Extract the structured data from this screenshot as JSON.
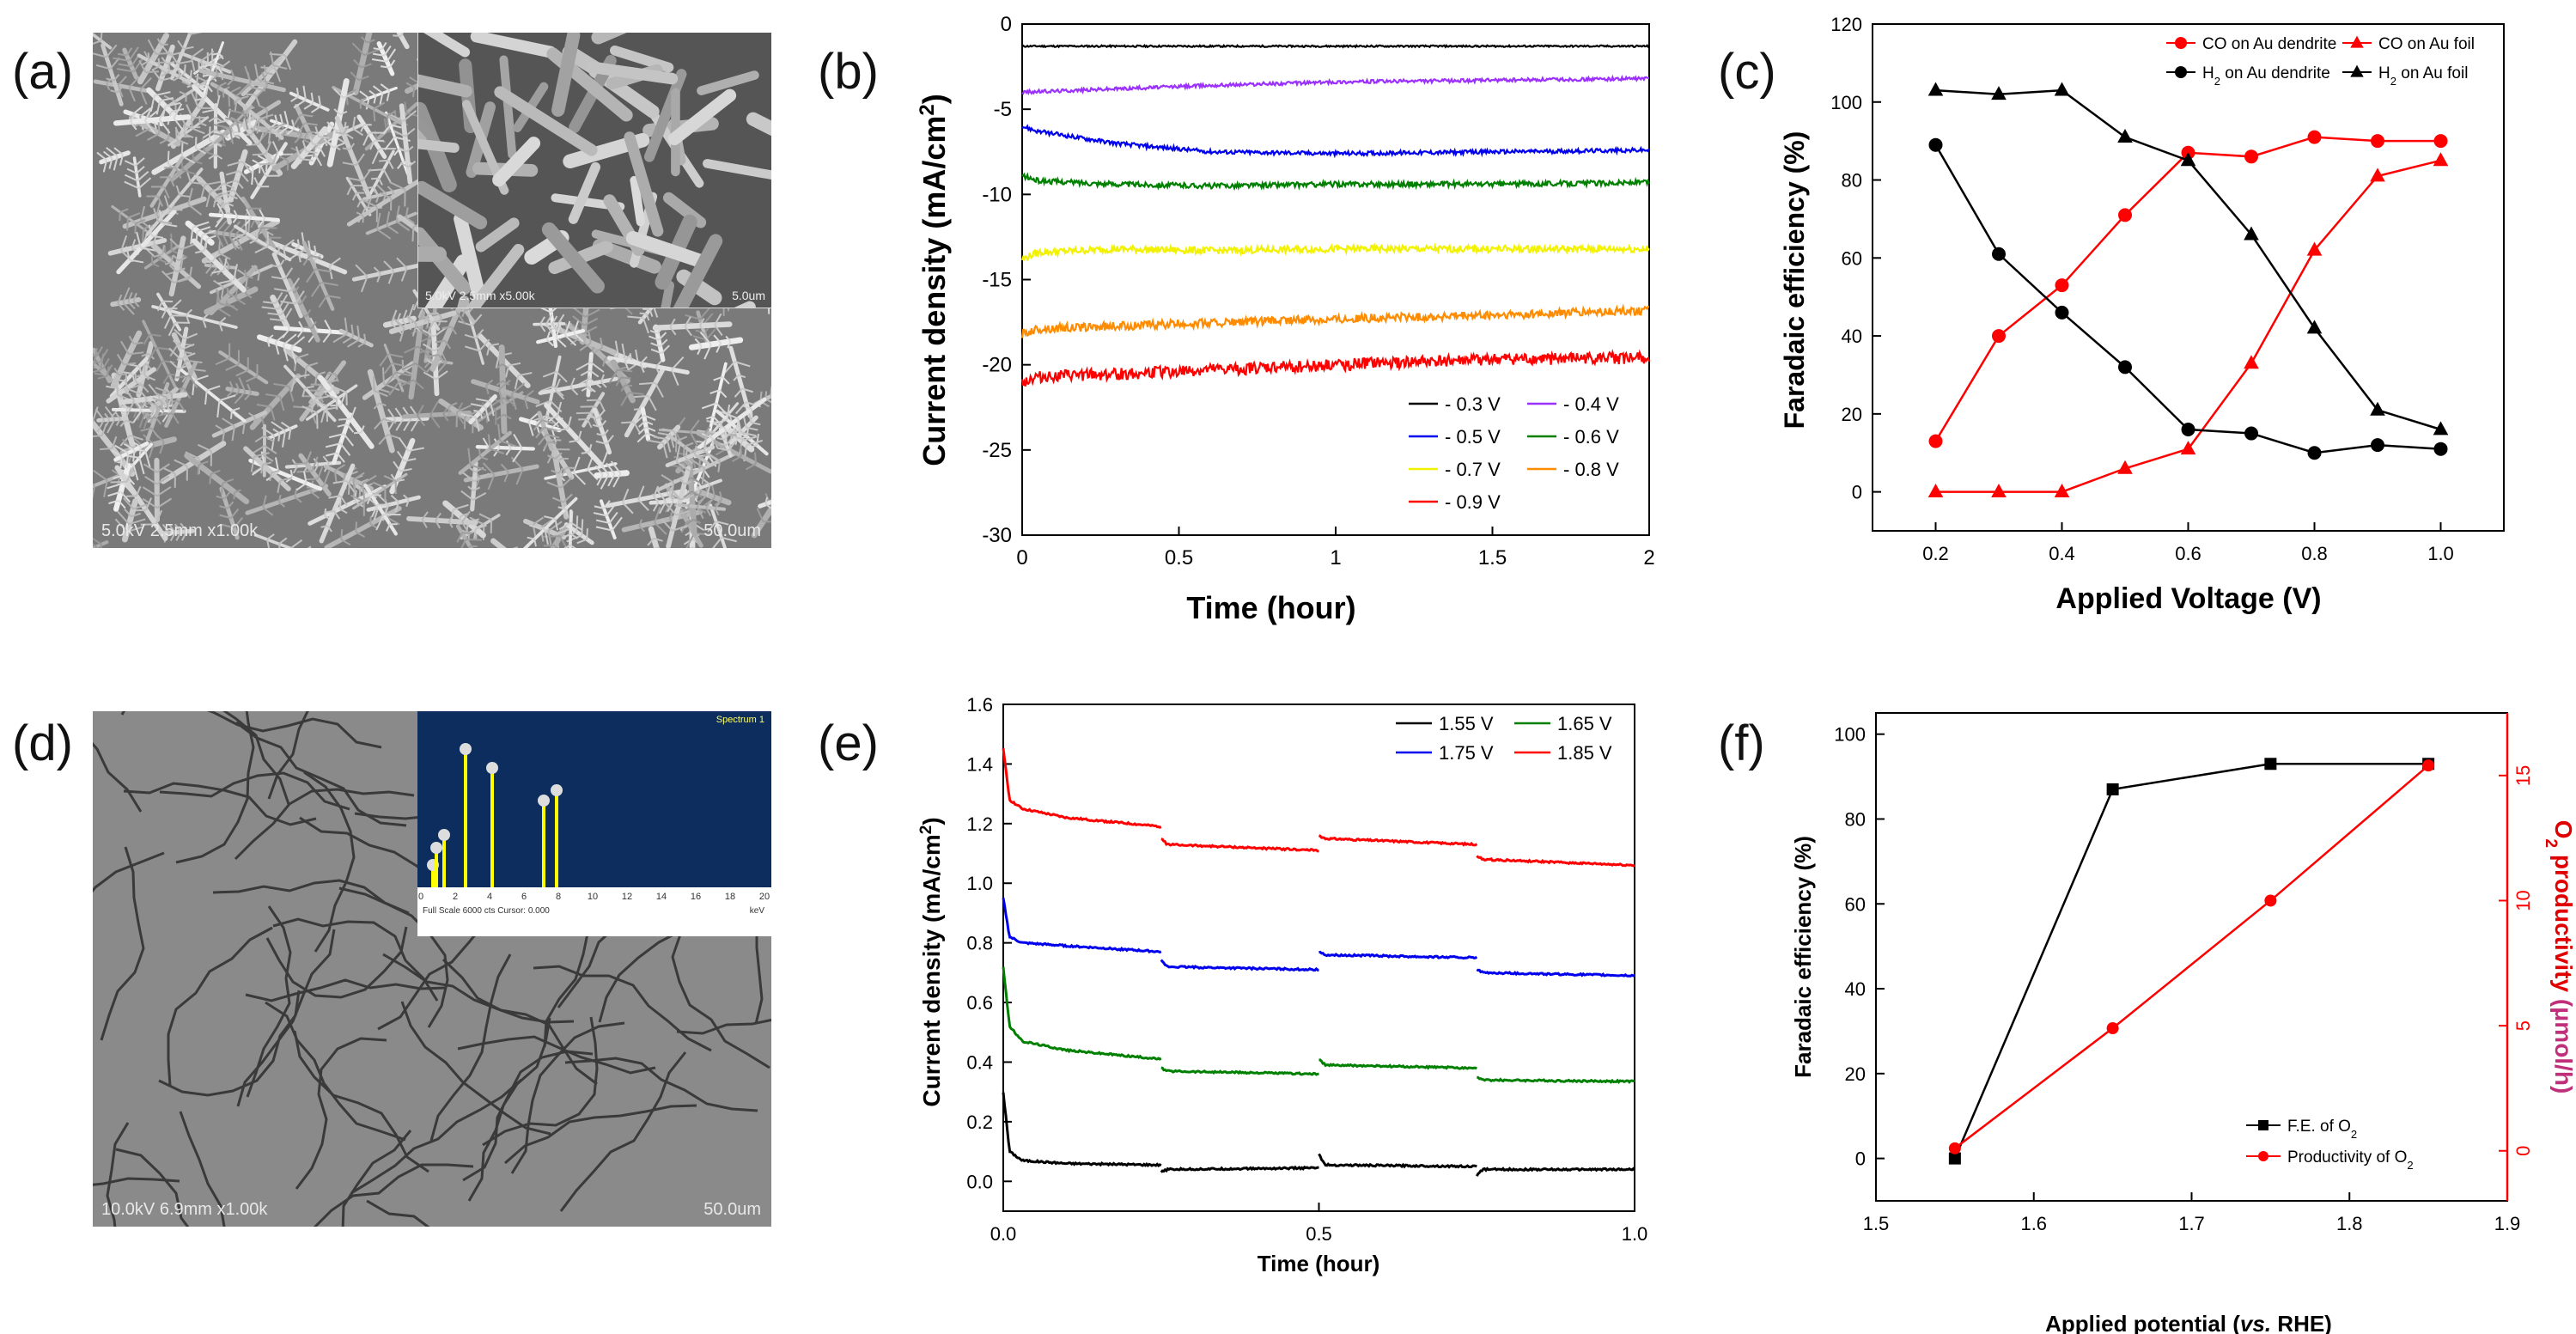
{
  "panels": {
    "a": {
      "label": "(a)",
      "caption_left": "5.0kV 2.5mm x1.00k",
      "caption_right": "50.0um",
      "inset_caption_left": "5.0kV 2.5mm x5.00k",
      "inset_caption_right": "5.0um"
    },
    "b": {
      "label": "(b)"
    },
    "c": {
      "label": "(c)"
    },
    "d": {
      "label": "(d)",
      "caption_left": "10.0kV 6.9mm x1.00k",
      "caption_right": "50.0um",
      "inset_title": "Spectrum 1",
      "inset_x_ticks": [
        "0",
        "2",
        "4",
        "6",
        "8",
        "10",
        "12",
        "14",
        "16",
        "18",
        "20"
      ],
      "inset_footer": "Full Scale 6000 cts Cursor: 0.000",
      "inset_unit": "keV"
    },
    "e": {
      "label": "(e)"
    },
    "f": {
      "label": "(f)"
    }
  },
  "chart_data": [
    {
      "id": "b",
      "type": "line",
      "title": "",
      "xlabel": "Time (hour)",
      "ylabel": "Current density (mA/cm2)",
      "xlim": [
        0,
        2
      ],
      "ylim": [
        -30,
        0
      ],
      "x_ticks": [
        "0",
        "0.5",
        "1",
        "1.5",
        "2"
      ],
      "y_ticks": [
        "0",
        "-5",
        "-10",
        "-15",
        "-20",
        "-25",
        "-30"
      ],
      "series": [
        {
          "name": "- 0.3 V",
          "color": "#000000",
          "x": [
            0,
            0.5,
            1,
            1.5,
            2
          ],
          "y": [
            -1.3,
            -1.3,
            -1.3,
            -1.3,
            -1.3
          ],
          "noise": 0.05
        },
        {
          "name": "- 0.4 V",
          "color": "#9b30ff",
          "x": [
            0,
            0.3,
            0.6,
            1,
            1.5,
            2
          ],
          "y": [
            -4.0,
            -3.8,
            -3.6,
            -3.4,
            -3.3,
            -3.2
          ],
          "noise": 0.1
        },
        {
          "name": "- 0.5 V",
          "color": "#0000ee",
          "x": [
            0,
            0.05,
            0.3,
            0.6,
            1,
            1.5,
            2
          ],
          "y": [
            -6.0,
            -6.3,
            -7.0,
            -7.5,
            -7.6,
            -7.5,
            -7.4
          ],
          "noise": 0.12
        },
        {
          "name": "- 0.6 V",
          "color": "#008000",
          "x": [
            0,
            0.05,
            0.3,
            0.6,
            1,
            1.5,
            2
          ],
          "y": [
            -8.9,
            -9.2,
            -9.4,
            -9.5,
            -9.4,
            -9.4,
            -9.3
          ],
          "noise": 0.15
        },
        {
          "name": "- 0.7 V",
          "color": "#f2f200",
          "x": [
            0,
            0.05,
            0.3,
            0.6,
            1,
            1.5,
            2
          ],
          "y": [
            -13.8,
            -13.4,
            -13.2,
            -13.3,
            -13.2,
            -13.2,
            -13.2
          ],
          "noise": 0.2
        },
        {
          "name": "- 0.8 V",
          "color": "#ff8c00",
          "x": [
            0,
            0.05,
            0.5,
            1,
            1.5,
            2
          ],
          "y": [
            -18.2,
            -17.9,
            -17.6,
            -17.3,
            -17.1,
            -16.8
          ],
          "noise": 0.25
        },
        {
          "name": "- 0.9 V",
          "color": "#ff0000",
          "x": [
            0,
            0.05,
            0.5,
            1,
            1.5,
            2
          ],
          "y": [
            -21.0,
            -20.7,
            -20.4,
            -20.0,
            -19.7,
            -19.6
          ],
          "noise": 0.35
        }
      ],
      "legend": "bottom-right"
    },
    {
      "id": "c",
      "type": "line",
      "xlabel": "Applied Voltage (V)",
      "ylabel": "Faradaic efficiency (%)",
      "xlim": [
        0.1,
        1.1
      ],
      "ylim": [
        -10,
        120
      ],
      "x_ticks": [
        "0.2",
        "0.4",
        "0.6",
        "0.8",
        "1.0"
      ],
      "y_ticks": [
        "0",
        "20",
        "40",
        "60",
        "80",
        "100",
        "120"
      ],
      "series": [
        {
          "name": "CO on Au dendrite",
          "color": "#ff0000",
          "marker": "circle",
          "x": [
            0.2,
            0.3,
            0.4,
            0.5,
            0.6,
            0.7,
            0.8,
            0.9,
            1.0
          ],
          "y": [
            13,
            40,
            53,
            71,
            87,
            86,
            91,
            90,
            90
          ]
        },
        {
          "name": "CO on Au foil",
          "color": "#ff0000",
          "marker": "triangle",
          "x": [
            0.2,
            0.3,
            0.4,
            0.5,
            0.6,
            0.7,
            0.8,
            0.9,
            1.0
          ],
          "y": [
            0,
            0,
            0,
            6,
            11,
            33,
            62,
            81,
            85
          ]
        },
        {
          "name": "H2 on Au dendrite",
          "color": "#000000",
          "marker": "circle",
          "x": [
            0.2,
            0.3,
            0.4,
            0.5,
            0.6,
            0.7,
            0.8,
            0.9,
            1.0
          ],
          "y": [
            89,
            61,
            46,
            32,
            16,
            15,
            10,
            12,
            11
          ]
        },
        {
          "name": "H2 on Au foil",
          "color": "#000000",
          "marker": "triangle",
          "x": [
            0.2,
            0.3,
            0.4,
            0.5,
            0.6,
            0.7,
            0.8,
            0.9,
            1.0
          ],
          "y": [
            103,
            102,
            103,
            91,
            85,
            66,
            42,
            21,
            16
          ]
        }
      ],
      "legend_rows": [
        [
          "CO on Au dendrite",
          "CO on Au foil"
        ],
        [
          "H2 on Au dendrite",
          "H2 on Au foil"
        ]
      ],
      "legend": "top-right"
    },
    {
      "id": "e",
      "type": "line",
      "xlabel": "Time (hour)",
      "ylabel": "Current density (mA/cm2)",
      "xlim": [
        0,
        1
      ],
      "ylim": [
        -0.1,
        1.6
      ],
      "x_ticks": [
        "0.0",
        "0.5",
        "1.0"
      ],
      "y_ticks": [
        "0.0",
        "0.2",
        "0.4",
        "0.6",
        "0.8",
        "1.0",
        "1.2",
        "1.4",
        "1.6"
      ],
      "series": [
        {
          "name": "1.55 V",
          "color": "#000000",
          "segments": [
            {
              "x": [
                0,
                0.01,
                0.03,
                0.1,
                0.25
              ],
              "y": [
                0.3,
                0.1,
                0.07,
                0.06,
                0.055
              ]
            },
            {
              "x": [
                0.25,
                0.26,
                0.5
              ],
              "y": [
                0.03,
                0.04,
                0.045
              ]
            },
            {
              "x": [
                0.5,
                0.51,
                0.75
              ],
              "y": [
                0.09,
                0.055,
                0.05
              ]
            },
            {
              "x": [
                0.75,
                0.76,
                1.0
              ],
              "y": [
                0.02,
                0.04,
                0.04
              ]
            }
          ]
        },
        {
          "name": "1.65 V",
          "color": "#008000",
          "segments": [
            {
              "x": [
                0,
                0.01,
                0.03,
                0.1,
                0.25
              ],
              "y": [
                0.72,
                0.52,
                0.47,
                0.44,
                0.41
              ]
            },
            {
              "x": [
                0.25,
                0.26,
                0.5
              ],
              "y": [
                0.38,
                0.37,
                0.36
              ]
            },
            {
              "x": [
                0.5,
                0.51,
                0.75
              ],
              "y": [
                0.41,
                0.39,
                0.38
              ]
            },
            {
              "x": [
                0.75,
                0.76,
                1.0
              ],
              "y": [
                0.35,
                0.34,
                0.335
              ]
            }
          ]
        },
        {
          "name": "1.75 V",
          "color": "#0000ee",
          "segments": [
            {
              "x": [
                0,
                0.01,
                0.03,
                0.1,
                0.25
              ],
              "y": [
                0.95,
                0.82,
                0.8,
                0.79,
                0.77
              ]
            },
            {
              "x": [
                0.25,
                0.26,
                0.5
              ],
              "y": [
                0.74,
                0.72,
                0.71
              ]
            },
            {
              "x": [
                0.5,
                0.51,
                0.75
              ],
              "y": [
                0.77,
                0.76,
                0.75
              ]
            },
            {
              "x": [
                0.75,
                0.76,
                1.0
              ],
              "y": [
                0.71,
                0.7,
                0.69
              ]
            }
          ]
        },
        {
          "name": "1.85 V",
          "color": "#ff0000",
          "segments": [
            {
              "x": [
                0,
                0.01,
                0.03,
                0.1,
                0.25
              ],
              "y": [
                1.45,
                1.28,
                1.25,
                1.22,
                1.19
              ]
            },
            {
              "x": [
                0.25,
                0.26,
                0.5
              ],
              "y": [
                1.15,
                1.13,
                1.11
              ]
            },
            {
              "x": [
                0.5,
                0.51,
                0.75
              ],
              "y": [
                1.16,
                1.15,
                1.13
              ]
            },
            {
              "x": [
                0.75,
                0.76,
                1.0
              ],
              "y": [
                1.09,
                1.08,
                1.06
              ]
            }
          ]
        }
      ],
      "legend": "top-right"
    },
    {
      "id": "f",
      "type": "line",
      "xlabel_parts": [
        "Applied potential (",
        "vs.",
        " RHE)"
      ],
      "ylabel": "Faradaic efficiency (%)",
      "y2label_parts": [
        "O",
        "2",
        " productivity ",
        "(μmol/h)"
      ],
      "xlim": [
        1.5,
        1.9
      ],
      "ylim": [
        -10,
        105
      ],
      "y2lim": [
        -2.0,
        17.5
      ],
      "x_ticks": [
        "1.5",
        "1.6",
        "1.7",
        "1.8",
        "1.9"
      ],
      "y_ticks": [
        "0",
        "20",
        "40",
        "60",
        "80",
        "100"
      ],
      "y2_ticks": [
        "0",
        "5",
        "10",
        "15"
      ],
      "series": [
        {
          "name": "F.E. of O2",
          "color": "#000000",
          "marker": "square",
          "axis": "left",
          "x": [
            1.55,
            1.65,
            1.75,
            1.85
          ],
          "y": [
            0,
            87,
            93,
            93
          ]
        },
        {
          "name": "Productivity of O2",
          "color": "#ff0000",
          "marker": "circle",
          "axis": "right",
          "x": [
            1.55,
            1.65,
            1.75,
            1.85
          ],
          "y": [
            0.1,
            4.9,
            10.0,
            15.4
          ]
        }
      ],
      "legend": "bottom-right"
    }
  ]
}
